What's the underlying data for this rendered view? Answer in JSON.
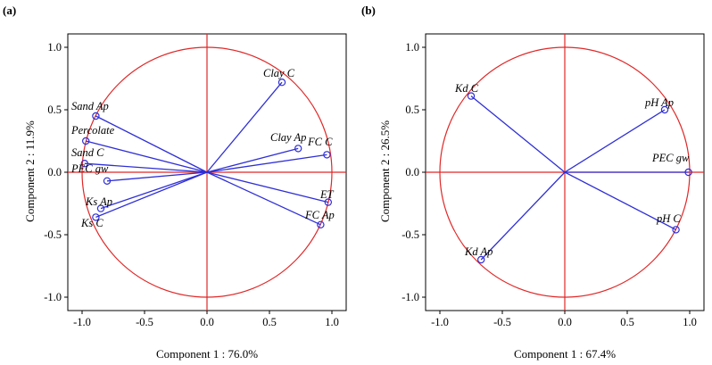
{
  "chart_data": [
    {
      "type": "scatter",
      "subtype": "pca-correlation-circle",
      "panel_label": "(a)",
      "xlabel": "Component 1 : 76.0%",
      "ylabel": "Component 2 : 11.9%",
      "xlim": [
        -1.1,
        1.1
      ],
      "ylim": [
        -1.1,
        1.1
      ],
      "xticks": [
        "-1.0",
        "-0.5",
        "0.0",
        "0.5",
        "1.0"
      ],
      "yticks": [
        "1.0",
        "0.5",
        "0.0",
        "-0.5",
        "-1.0"
      ],
      "points": [
        {
          "label": "Clay C",
          "x": 0.6,
          "y": 0.72
        },
        {
          "label": "Sand Ap",
          "x": -0.89,
          "y": 0.45
        },
        {
          "label": "Percolate",
          "x": -0.97,
          "y": 0.25
        },
        {
          "label": "Sand C",
          "x": -0.98,
          "y": 0.07
        },
        {
          "label": "PEC gw",
          "x": -0.8,
          "y": -0.07
        },
        {
          "label": "Clay Ap",
          "x": 0.73,
          "y": 0.19
        },
        {
          "label": "FC C",
          "x": 0.96,
          "y": 0.14
        },
        {
          "label": "ET",
          "x": 0.97,
          "y": -0.24
        },
        {
          "label": "FC Ap",
          "x": 0.91,
          "y": -0.42
        },
        {
          "label": "Ks Ap",
          "x": -0.85,
          "y": -0.29
        },
        {
          "label": "Ks C",
          "x": -0.89,
          "y": -0.36
        }
      ]
    },
    {
      "type": "scatter",
      "subtype": "pca-correlation-circle",
      "panel_label": "(b)",
      "xlabel": "Component 1 : 67.4%",
      "ylabel": "Component 2 : 26.5%",
      "xlim": [
        -1.1,
        1.1
      ],
      "ylim": [
        -1.1,
        1.1
      ],
      "xticks": [
        "-1.0",
        "-0.5",
        "0.0",
        "0.5",
        "1.0"
      ],
      "yticks": [
        "1.0",
        "0.5",
        "0.0",
        "-0.5",
        "-1.0"
      ],
      "points": [
        {
          "label": "Kd C",
          "x": -0.75,
          "y": 0.61
        },
        {
          "label": "pH Ap",
          "x": 0.8,
          "y": 0.5
        },
        {
          "label": "PEC gw",
          "x": 0.99,
          "y": 0.0
        },
        {
          "label": "pH C",
          "x": 0.89,
          "y": -0.46
        },
        {
          "label": "Kd Ap",
          "x": -0.67,
          "y": -0.7
        }
      ]
    }
  ]
}
